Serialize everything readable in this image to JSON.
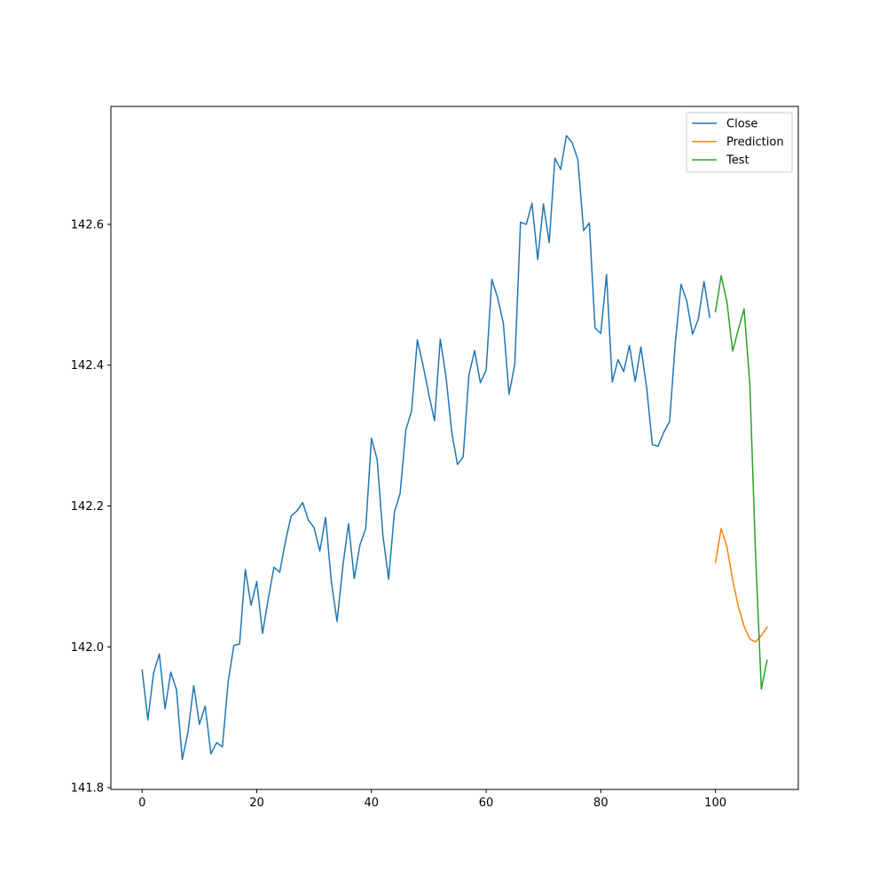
{
  "chart_data": {
    "type": "line",
    "title": "",
    "xlabel": "",
    "ylabel": "",
    "xlim": [
      -5.45,
      114.45
    ],
    "ylim": [
      141.7975,
      142.7675
    ],
    "xticks": [
      0,
      20,
      40,
      60,
      80,
      100
    ],
    "yticks": [
      141.8,
      142.0,
      142.2,
      142.4,
      142.6
    ],
    "ytick_labels": [
      "141.8",
      "142.0",
      "142.2",
      "142.4",
      "142.6"
    ],
    "grid": false,
    "legend_position": "top-right",
    "series": [
      {
        "name": "Close",
        "color": "#1f77b4",
        "x_start": 0,
        "values": [
          141.967,
          141.896,
          141.963,
          141.99,
          141.912,
          141.964,
          141.939,
          141.84,
          141.879,
          141.945,
          141.89,
          141.916,
          141.848,
          141.864,
          141.858,
          141.95,
          142.002,
          142.004,
          142.11,
          142.059,
          142.093,
          142.019,
          142.068,
          142.113,
          142.106,
          142.15,
          142.186,
          142.193,
          142.205,
          142.18,
          142.169,
          142.136,
          142.184,
          142.093,
          142.036,
          142.114,
          142.175,
          142.097,
          142.145,
          142.168,
          142.296,
          142.266,
          142.158,
          142.096,
          142.191,
          142.218,
          142.308,
          142.335,
          142.436,
          142.4,
          142.359,
          142.321,
          142.437,
          142.384,
          142.305,
          142.259,
          142.27,
          142.386,
          142.421,
          142.375,
          142.393,
          142.522,
          142.496,
          142.46,
          142.359,
          142.401,
          142.603,
          142.6,
          142.63,
          142.55,
          142.629,
          142.574,
          142.694,
          142.678,
          142.726,
          142.716,
          142.692,
          142.591,
          142.602,
          142.453,
          142.445,
          142.529,
          142.376,
          142.408,
          142.391,
          142.428,
          142.377,
          142.426,
          142.368,
          142.287,
          142.285,
          142.305,
          142.32,
          142.432,
          142.515,
          142.491,
          142.444,
          142.465,
          142.519,
          142.468
        ]
      },
      {
        "name": "Prediction",
        "color": "#ff7f0e",
        "x_start": 100,
        "values": [
          142.12,
          142.168,
          142.142,
          142.095,
          142.057,
          142.029,
          142.011,
          142.007,
          142.016,
          142.028
        ]
      },
      {
        "name": "Test",
        "color": "#2ca02c",
        "x_start": 100,
        "values": [
          142.476,
          142.527,
          142.49,
          142.42,
          142.451,
          142.48,
          142.372,
          142.13,
          141.94,
          141.981
        ]
      }
    ]
  }
}
